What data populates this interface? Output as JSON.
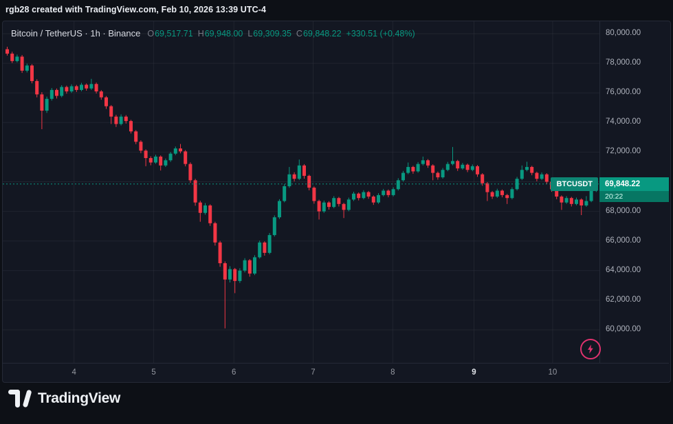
{
  "attribution": "rgb28 created with TradingView.com, Feb 10, 2026 13:39 UTC-4",
  "legend": {
    "title": "Bitcoin / TetherUS · 1h · Binance",
    "o_label": "O",
    "open": "69,517.71",
    "h_label": "H",
    "high": "69,948.00",
    "l_label": "L",
    "low": "69,309.35",
    "c_label": "C",
    "close": "69,848.22",
    "change": "+330.51 (+0.48%)"
  },
  "price_badge": {
    "symbol": "BTCUSDT",
    "price": "69,848.22",
    "countdown": "20:22"
  },
  "footer": {
    "brand": "TradingView"
  },
  "colors": {
    "up": "#089981",
    "down": "#f23645",
    "background": "#131722",
    "grid": "rgba(54,58,69,0.38)",
    "axis_text": "#aeb2bc",
    "price_line": "#089981",
    "flash": "#e0326e"
  },
  "chart_data": {
    "type": "candlestick",
    "symbol": "BTCUSDT",
    "exchange": "Binance",
    "interval": "1h",
    "title": "Bitcoin / TetherUS · 1h · Binance",
    "current_price": 69848.22,
    "ohlc_display": {
      "open": 69517.71,
      "high": 69948.0,
      "low": 69309.35,
      "close": 69848.22,
      "change": 330.51,
      "change_pct": 0.48
    },
    "price_axis": {
      "min": 60000,
      "max": 80000,
      "step": 2000,
      "tick_labels": [
        "80,000.00",
        "78,000.00",
        "76,000.00",
        "74,000.00",
        "72,000.00",
        "70,000.00",
        "68,000.00",
        "66,000.00",
        "64,000.00",
        "62,000.00",
        "60,000.00"
      ]
    },
    "time_axis": {
      "labels": [
        {
          "text": "4",
          "i": 13.5,
          "strong": false
        },
        {
          "text": "5",
          "i": 29.6,
          "strong": false
        },
        {
          "text": "6",
          "i": 45.8,
          "strong": false
        },
        {
          "text": "7",
          "i": 61.8,
          "strong": false
        },
        {
          "text": "8",
          "i": 77.9,
          "strong": false
        },
        {
          "text": "9",
          "i": 94.3,
          "strong": true
        },
        {
          "text": "10",
          "i": 110.2,
          "strong": false
        }
      ]
    },
    "candles": [
      [
        78950,
        79120,
        78520,
        78650
      ],
      [
        78650,
        78780,
        78020,
        78150
      ],
      [
        78150,
        78590,
        78060,
        78450
      ],
      [
        78450,
        78560,
        77350,
        77500
      ],
      [
        77500,
        77980,
        77380,
        77850
      ],
      [
        77850,
        77940,
        76650,
        76800
      ],
      [
        76800,
        76920,
        75700,
        75900
      ],
      [
        75900,
        76050,
        73550,
        74800
      ],
      [
        74800,
        75750,
        74650,
        75600
      ],
      [
        75600,
        76330,
        75480,
        76200
      ],
      [
        76200,
        76300,
        75620,
        75800
      ],
      [
        75800,
        76520,
        75700,
        76400
      ],
      [
        76400,
        76490,
        75950,
        76100
      ],
      [
        76100,
        76580,
        76000,
        76450
      ],
      [
        76450,
        76540,
        76060,
        76200
      ],
      [
        76200,
        76680,
        76110,
        76550
      ],
      [
        76550,
        76640,
        76150,
        76300
      ],
      [
        76300,
        76950,
        76200,
        76600
      ],
      [
        76600,
        76700,
        75960,
        76100
      ],
      [
        76100,
        76190,
        75540,
        75700
      ],
      [
        75700,
        75790,
        74920,
        75100
      ],
      [
        75100,
        75180,
        73900,
        74400
      ],
      [
        74400,
        74520,
        73700,
        73900
      ],
      [
        73900,
        74550,
        73800,
        74400
      ],
      [
        74400,
        74500,
        73930,
        74100
      ],
      [
        74100,
        74180,
        73260,
        73400
      ],
      [
        73400,
        73490,
        72540,
        72700
      ],
      [
        72700,
        72800,
        71930,
        72100
      ],
      [
        72100,
        72190,
        71050,
        71600
      ],
      [
        71600,
        71720,
        71110,
        71300
      ],
      [
        71300,
        71830,
        71210,
        71700
      ],
      [
        71700,
        71780,
        70760,
        71100
      ],
      [
        71100,
        71570,
        71000,
        71450
      ],
      [
        71450,
        72010,
        71340,
        71900
      ],
      [
        71900,
        72380,
        71800,
        72250
      ],
      [
        72250,
        72550,
        71920,
        72050
      ],
      [
        72050,
        72140,
        71040,
        71200
      ],
      [
        71200,
        71310,
        69920,
        70100
      ],
      [
        70100,
        70200,
        68380,
        68600
      ],
      [
        68600,
        68720,
        67300,
        67900
      ],
      [
        67900,
        68560,
        67780,
        68400
      ],
      [
        68400,
        68480,
        67020,
        67200
      ],
      [
        67200,
        67300,
        65690,
        65900
      ],
      [
        65900,
        66010,
        64260,
        64500
      ],
      [
        64500,
        64620,
        60100,
        63400
      ],
      [
        63400,
        64300,
        63200,
        64100
      ],
      [
        64100,
        64180,
        62480,
        63300
      ],
      [
        63300,
        64160,
        63170,
        64000
      ],
      [
        64000,
        64840,
        63880,
        64700
      ],
      [
        64700,
        64780,
        63590,
        63800
      ],
      [
        63800,
        65040,
        63700,
        64900
      ],
      [
        64900,
        66030,
        64810,
        65900
      ],
      [
        65900,
        65980,
        65010,
        65200
      ],
      [
        65200,
        66540,
        65100,
        66400
      ],
      [
        66400,
        67730,
        66300,
        67600
      ],
      [
        67600,
        68820,
        67490,
        68700
      ],
      [
        68700,
        69840,
        68610,
        69700
      ],
      [
        69700,
        71000,
        69590,
        70500
      ],
      [
        70500,
        70640,
        70020,
        70200
      ],
      [
        70200,
        71500,
        70110,
        71100
      ],
      [
        71100,
        71190,
        70210,
        70400
      ],
      [
        70400,
        70480,
        69420,
        69600
      ],
      [
        69600,
        69680,
        68520,
        68700
      ],
      [
        68700,
        68790,
        67450,
        68000
      ],
      [
        68000,
        68730,
        67900,
        68600
      ],
      [
        68600,
        68690,
        68120,
        68300
      ],
      [
        68300,
        69030,
        68210,
        68900
      ],
      [
        68900,
        68980,
        68330,
        68500
      ],
      [
        68500,
        68580,
        67550,
        68100
      ],
      [
        68100,
        68930,
        68010,
        68800
      ],
      [
        68800,
        69330,
        68700,
        69200
      ],
      [
        69200,
        69280,
        68740,
        68900
      ],
      [
        68900,
        69430,
        68810,
        69300
      ],
      [
        69300,
        69380,
        68850,
        69000
      ],
      [
        69000,
        69080,
        68440,
        68600
      ],
      [
        68600,
        69230,
        68510,
        69100
      ],
      [
        69100,
        69520,
        69010,
        69400
      ],
      [
        69400,
        69480,
        68950,
        69100
      ],
      [
        69100,
        69630,
        69010,
        69500
      ],
      [
        69500,
        70240,
        69410,
        70100
      ],
      [
        70100,
        70730,
        70010,
        70600
      ],
      [
        70600,
        71300,
        70510,
        71000
      ],
      [
        71000,
        71080,
        70540,
        70700
      ],
      [
        70700,
        71330,
        70610,
        71200
      ],
      [
        71200,
        71700,
        71100,
        71450
      ],
      [
        71450,
        71530,
        70940,
        71100
      ],
      [
        71100,
        71180,
        70100,
        70600
      ],
      [
        70600,
        70690,
        70140,
        70300
      ],
      [
        70300,
        70930,
        70210,
        70800
      ],
      [
        70800,
        71340,
        70710,
        71200
      ],
      [
        71200,
        72350,
        71110,
        71400
      ],
      [
        71400,
        71480,
        70730,
        70900
      ],
      [
        70900,
        71270,
        70810,
        71150
      ],
      [
        71150,
        71230,
        70650,
        70800
      ],
      [
        70800,
        71170,
        70710,
        71050
      ],
      [
        71050,
        71130,
        70330,
        70500
      ],
      [
        70500,
        70580,
        69730,
        69900
      ],
      [
        69900,
        69980,
        68700,
        69300
      ],
      [
        69300,
        69380,
        68840,
        69000
      ],
      [
        69000,
        69530,
        68910,
        69400
      ],
      [
        69400,
        69480,
        68950,
        69100
      ],
      [
        69100,
        69180,
        68500,
        68900
      ],
      [
        68900,
        69630,
        68810,
        69500
      ],
      [
        69500,
        70330,
        69410,
        70200
      ],
      [
        70200,
        71100,
        70110,
        70800
      ],
      [
        70800,
        71350,
        70700,
        71000
      ],
      [
        71000,
        71080,
        70440,
        70600
      ],
      [
        70600,
        70680,
        70030,
        70200
      ],
      [
        70200,
        70630,
        70110,
        70500
      ],
      [
        70500,
        70580,
        69840,
        70000
      ],
      [
        70000,
        70080,
        69320,
        69500
      ],
      [
        69500,
        69580,
        68820,
        69000
      ],
      [
        69000,
        69080,
        68100,
        68600
      ],
      [
        68600,
        69030,
        68510,
        68900
      ],
      [
        68900,
        68980,
        68330,
        68500
      ],
      [
        68500,
        68930,
        68410,
        68800
      ],
      [
        68800,
        68880,
        67750,
        68400
      ],
      [
        68400,
        69030,
        68310,
        68700
      ],
      [
        68700,
        69650,
        68620,
        69517
      ],
      [
        69517,
        69948,
        69309,
        69848
      ]
    ]
  }
}
